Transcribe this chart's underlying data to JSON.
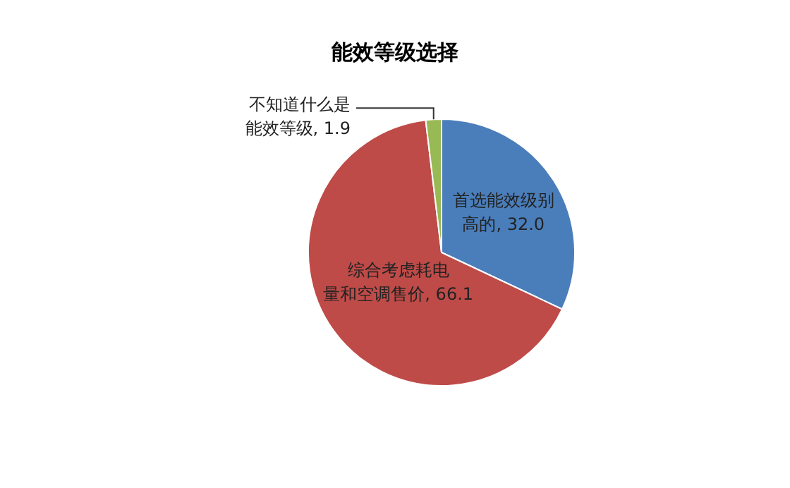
{
  "chart_data": {
    "type": "pie",
    "title": "能效等级选择",
    "categories": [
      "首选能效级别高的",
      "综合考虑耗电量和空调售价",
      "不知道什么是能效等级"
    ],
    "values": [
      32.0,
      66.1,
      1.9
    ],
    "value_labels": [
      "32.0",
      "66.1",
      "1.9"
    ],
    "colors": [
      "#4a7ebb",
      "#be4b48",
      "#98b954"
    ],
    "legend": false
  }
}
